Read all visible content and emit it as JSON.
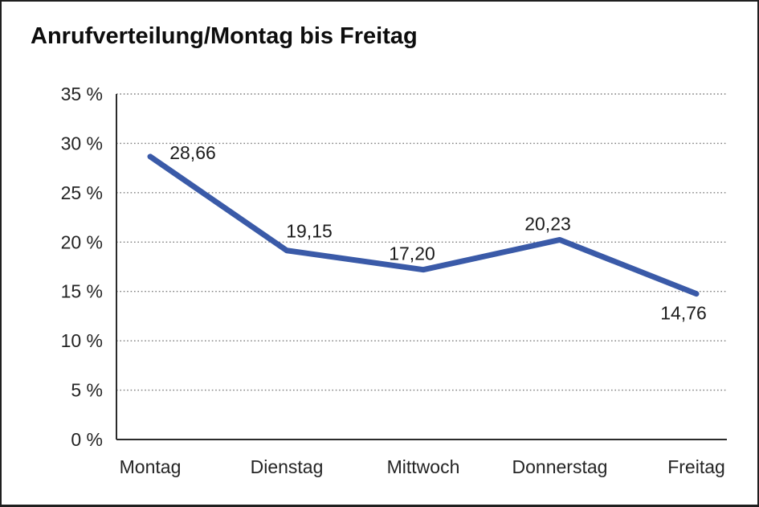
{
  "chart_data": {
    "type": "line",
    "title": "Anrufverteilung/Montag bis Freitag",
    "categories": [
      "Montag",
      "Dienstag",
      "Mittwoch",
      "Donnerstag",
      "Freitag"
    ],
    "values": [
      28.66,
      19.15,
      17.2,
      20.23,
      14.76
    ],
    "value_labels": [
      "28,66",
      "19,15",
      "17,20",
      "20,23",
      "14,76"
    ],
    "series": [
      {
        "name": "Anrufverteilung",
        "values": [
          28.66,
          19.15,
          17.2,
          20.23,
          14.76
        ]
      }
    ],
    "xlabel": "",
    "ylabel": "",
    "ylim": [
      0,
      35
    ],
    "y_tick_step": 5,
    "y_tick_labels": [
      "0 %",
      "5 %",
      "10 %",
      "15 %",
      "20 %",
      "25 %",
      "30 %",
      "35 %"
    ],
    "grid": "horizontal-dotted",
    "legend_position": "none",
    "colors": {
      "line": "#3A5AA8",
      "text": "#242424",
      "title": "#0d0d0d",
      "grid": "#7d7d7d",
      "axis": "#2b2b2b",
      "background": "#ffffff"
    }
  }
}
